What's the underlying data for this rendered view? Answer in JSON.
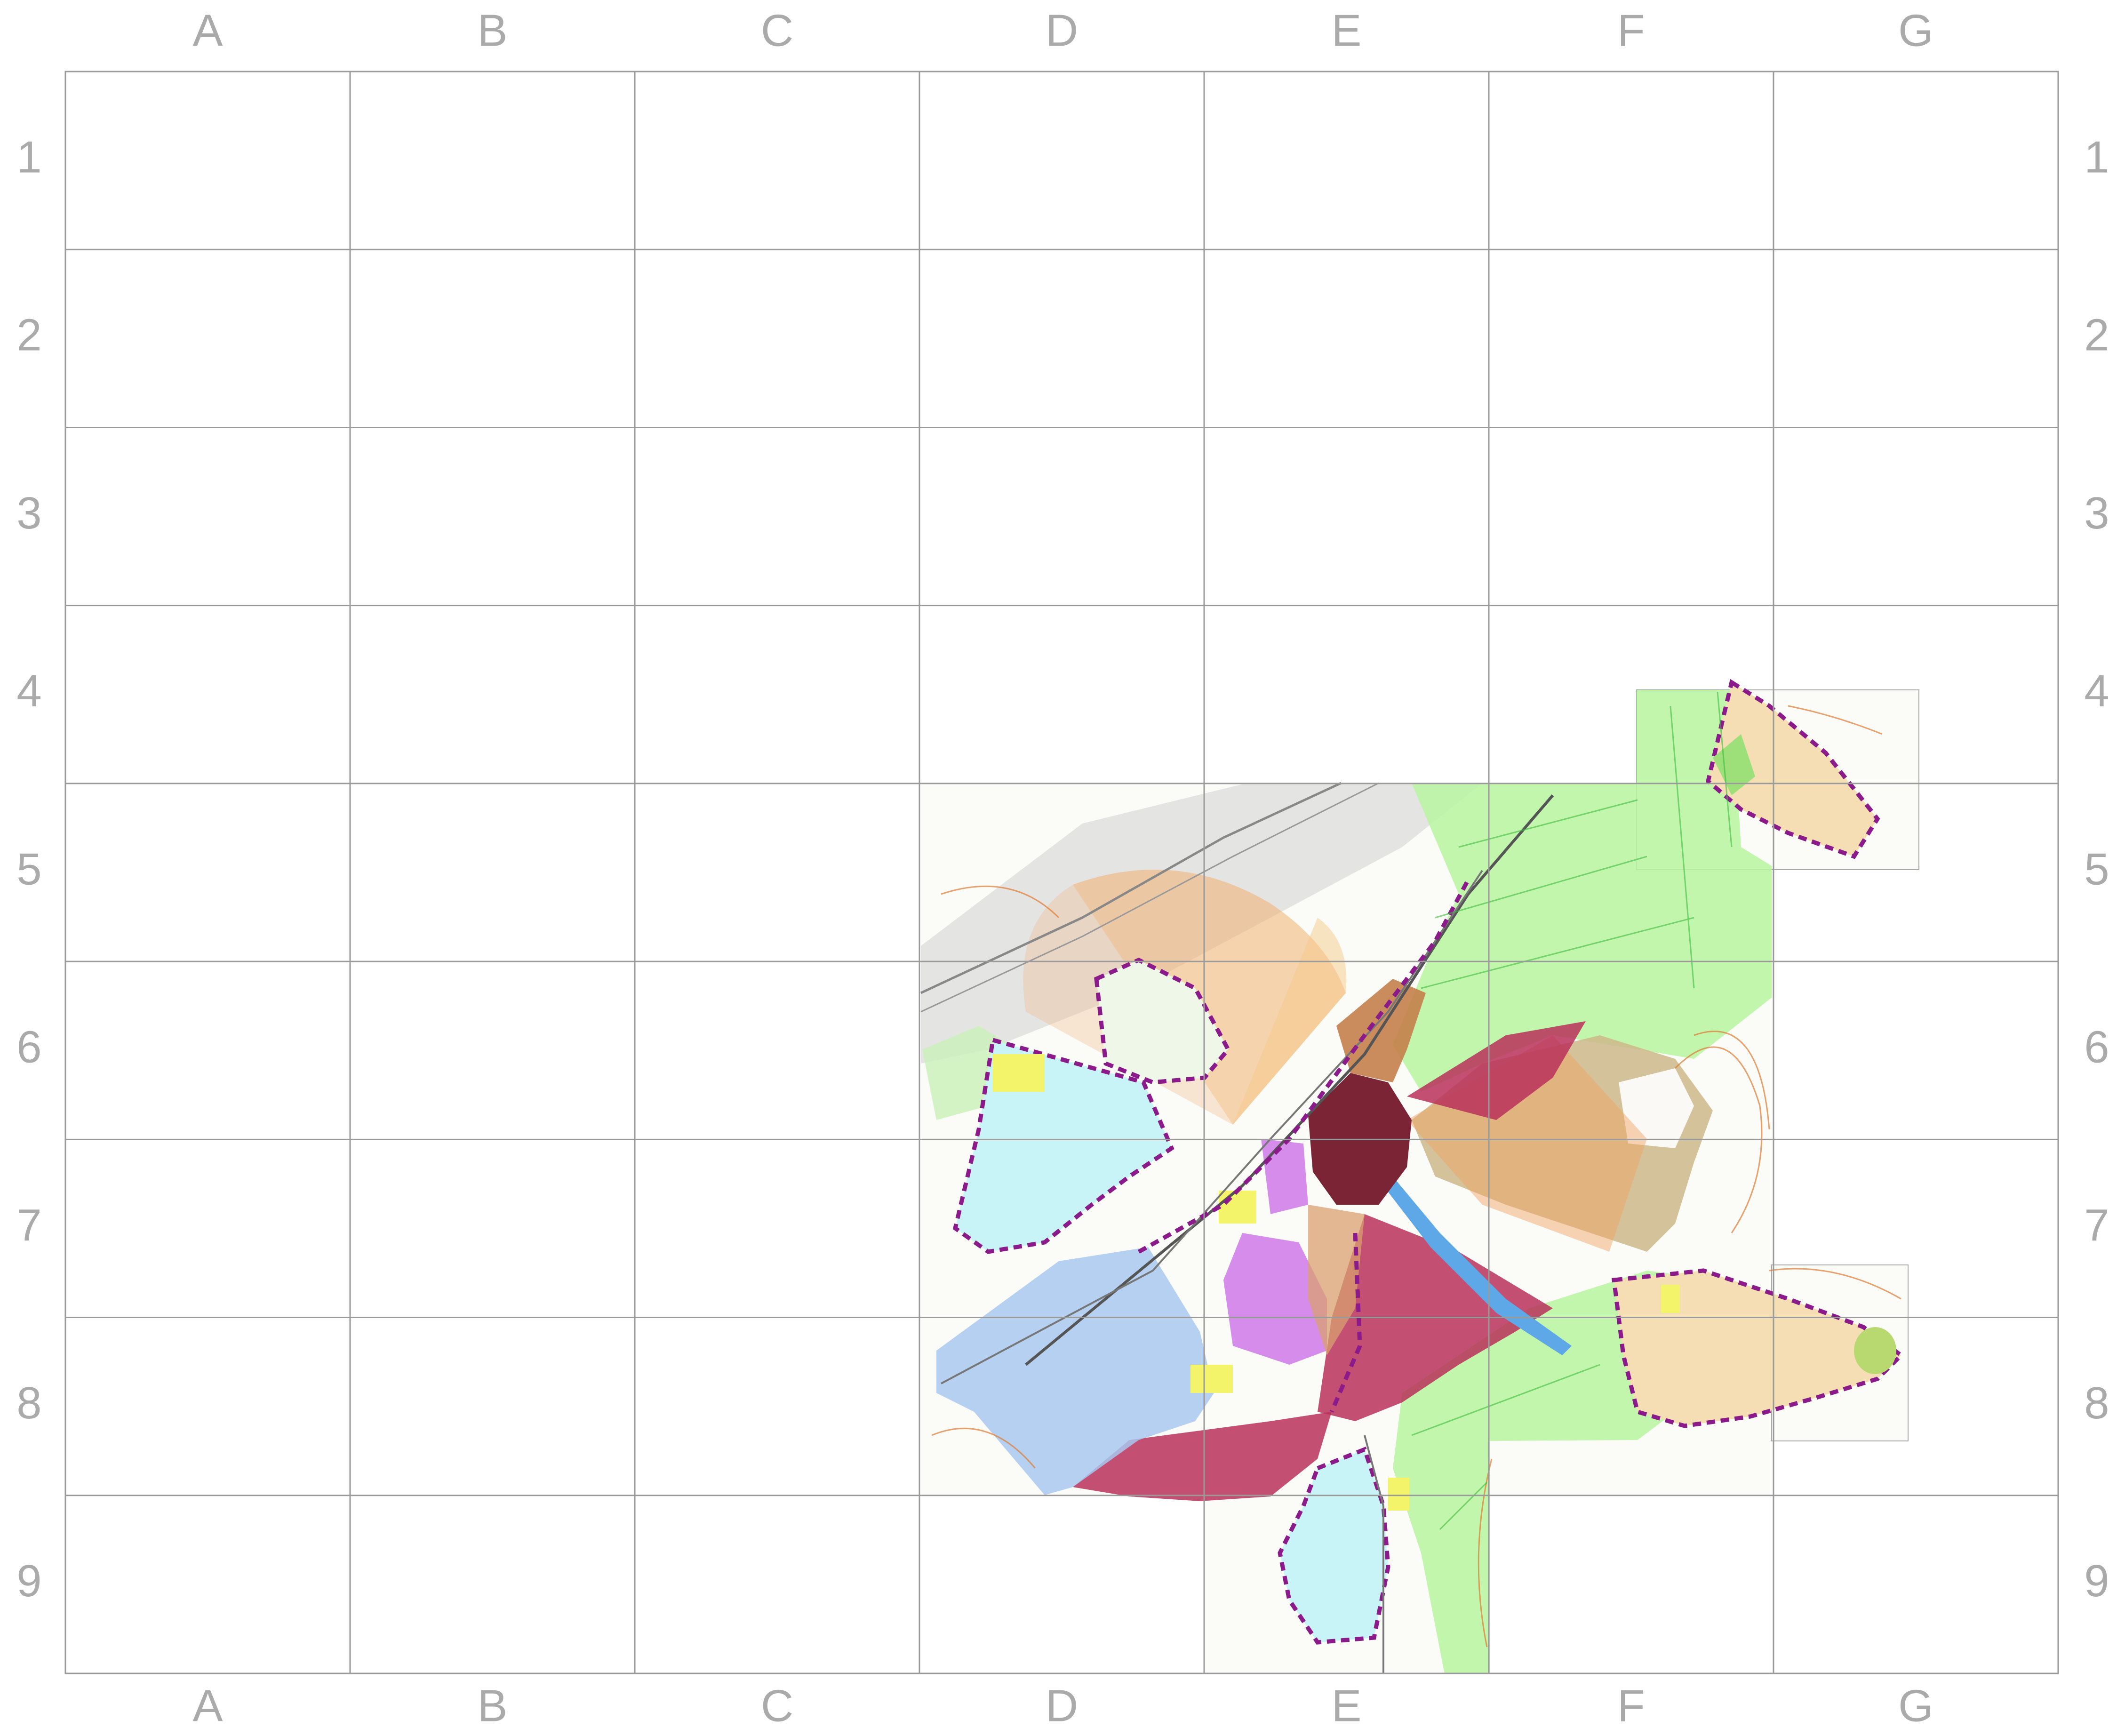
{
  "grid": {
    "columns": [
      "A",
      "B",
      "C",
      "D",
      "E",
      "F",
      "G"
    ],
    "rows": [
      "1",
      "2",
      "3",
      "4",
      "5",
      "6",
      "7",
      "8",
      "9"
    ]
  },
  "colors": {
    "grid_line": "#9a9a9a",
    "label": "#aaaaaa",
    "boundary": "#8b1a8b",
    "historic_center": "#7a2435",
    "protection_zone": "#b8305a",
    "industrial": "#c8f4f8",
    "residential": "#f5deb3",
    "agricultural": "#b8f5a0",
    "water_zone": "#a8c8f0",
    "yellow_zone": "#f4f46a",
    "purple_zone": "#d080e8",
    "buffer_orange": "#f0b070",
    "hill_tan": "#cdb98a",
    "contour": "#e07a30"
  }
}
